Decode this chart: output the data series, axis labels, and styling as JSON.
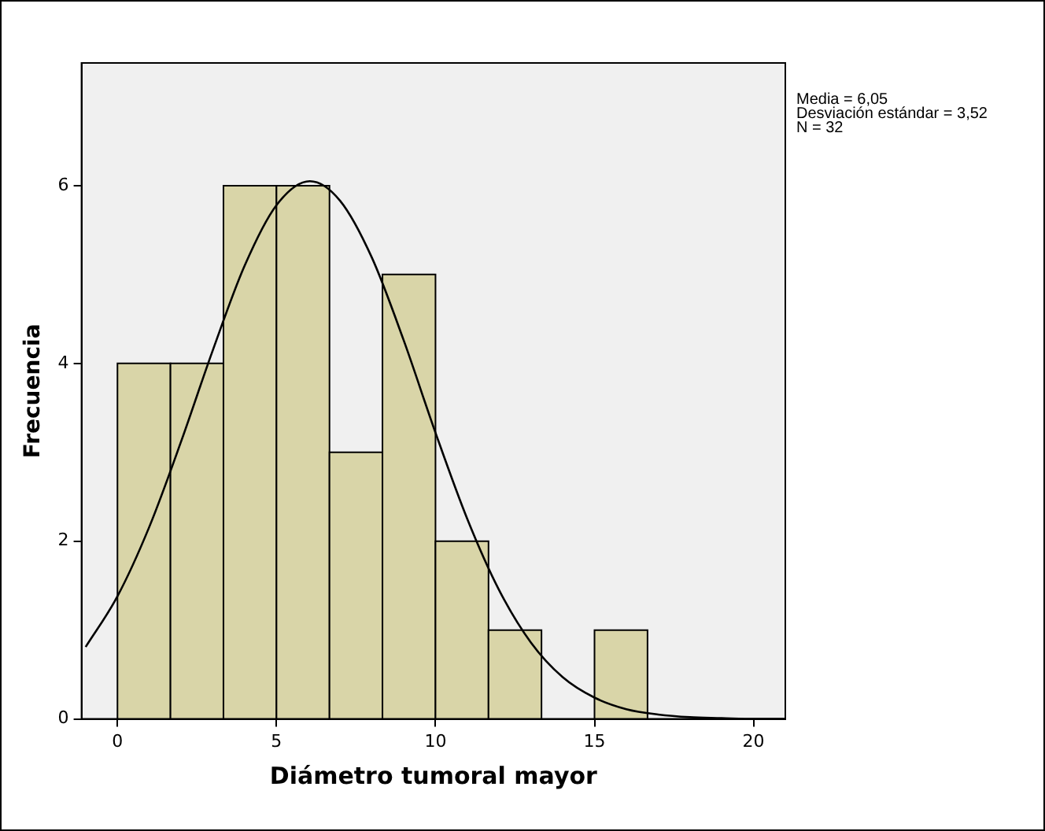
{
  "chart_data": {
    "type": "histogram",
    "xlabel": "Diámetro tumoral mayor",
    "ylabel": "Frecuencia",
    "bins": [
      0,
      1.667,
      3.333,
      5,
      6.667,
      8.333,
      10,
      11.667,
      13.333,
      15,
      16.667
    ],
    "values": [
      4,
      4,
      6,
      6,
      3,
      5,
      2,
      1,
      0,
      1
    ],
    "color": "#d9d5a8",
    "series": [
      {
        "type": "line",
        "color": "#000000",
        "x": [
          -1,
          0,
          1,
          2,
          3,
          4,
          5,
          6.05,
          7,
          8,
          9,
          10,
          11,
          12,
          13,
          14,
          15,
          16,
          17,
          18,
          19,
          20,
          21
        ],
        "values": [
          0.81,
          1.38,
          2.16,
          3.12,
          4.15,
          5.1,
          5.78,
          6.05,
          5.83,
          5.19,
          4.26,
          3.22,
          2.25,
          1.45,
          0.86,
          0.47,
          0.24,
          0.11,
          0.05,
          0.02,
          0.01,
          0,
          0
        ]
      }
    ],
    "xlim": [
      -1.13,
      21
    ],
    "xticks": [
      0,
      5,
      10,
      15,
      20
    ],
    "ylim": [
      0,
      7.38
    ],
    "yticks": [
      0,
      2,
      4,
      6
    ],
    "grid": false,
    "legend": false,
    "marker": "none",
    "line_style": "solid",
    "annotations": [
      "Media = 6,05",
      "Desviación estándar = 3,52",
      "N = 32"
    ]
  }
}
